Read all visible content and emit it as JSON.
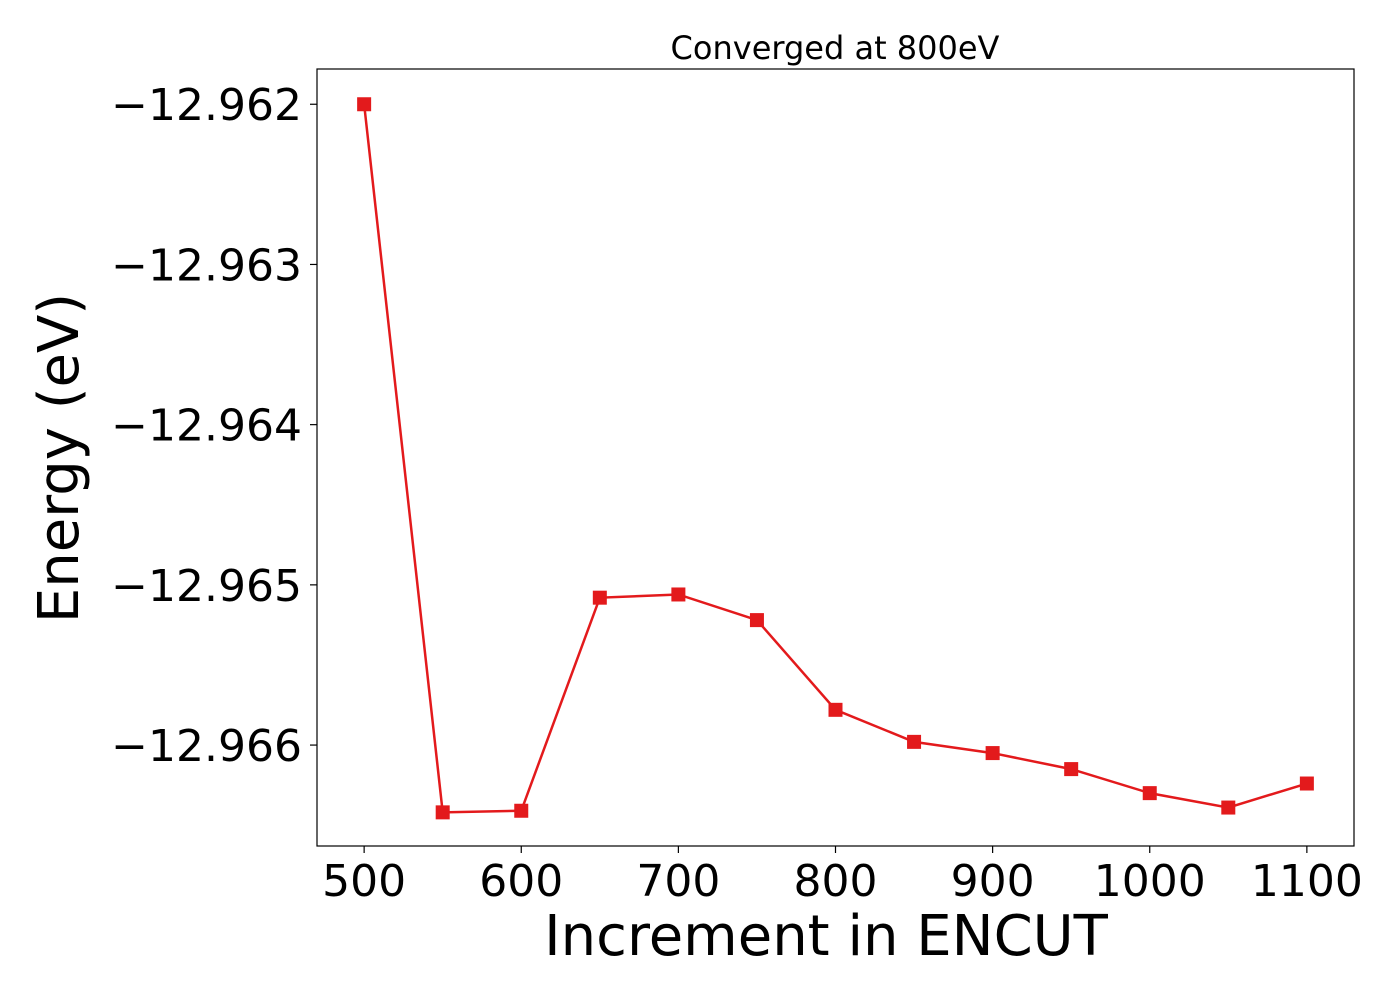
{
  "chart_data": {
    "type": "line",
    "title": "Converged at 800eV",
    "xlabel": "Increment in ENCUT",
    "ylabel": "Energy (eV)",
    "x": [
      500,
      550,
      600,
      650,
      700,
      750,
      800,
      850,
      900,
      950,
      1000,
      1050,
      1100
    ],
    "series": [
      {
        "color": "#e31a1c",
        "marker": "square",
        "values": [
          -12.962,
          -12.96642,
          -12.96641,
          -12.96508,
          -12.96506,
          -12.96522,
          -12.96578,
          -12.96598,
          -12.96605,
          -12.96615,
          -12.9663,
          -12.96639,
          -12.96624
        ]
      }
    ],
    "xlim": [
      470,
      1130
    ],
    "ylim": [
      -12.96663,
      -12.96178
    ],
    "xticks": [
      500,
      600,
      700,
      800,
      900,
      1000,
      1100
    ],
    "xtick_labels": [
      "500",
      "600",
      "700",
      "800",
      "900",
      "1000",
      "1100"
    ],
    "yticks": [
      -12.962,
      -12.963,
      -12.964,
      -12.965,
      -12.966
    ],
    "ytick_labels": [
      "−12.962",
      "−12.963",
      "−12.964",
      "−12.965",
      "−12.966"
    ],
    "grid": false,
    "legend": "none"
  }
}
